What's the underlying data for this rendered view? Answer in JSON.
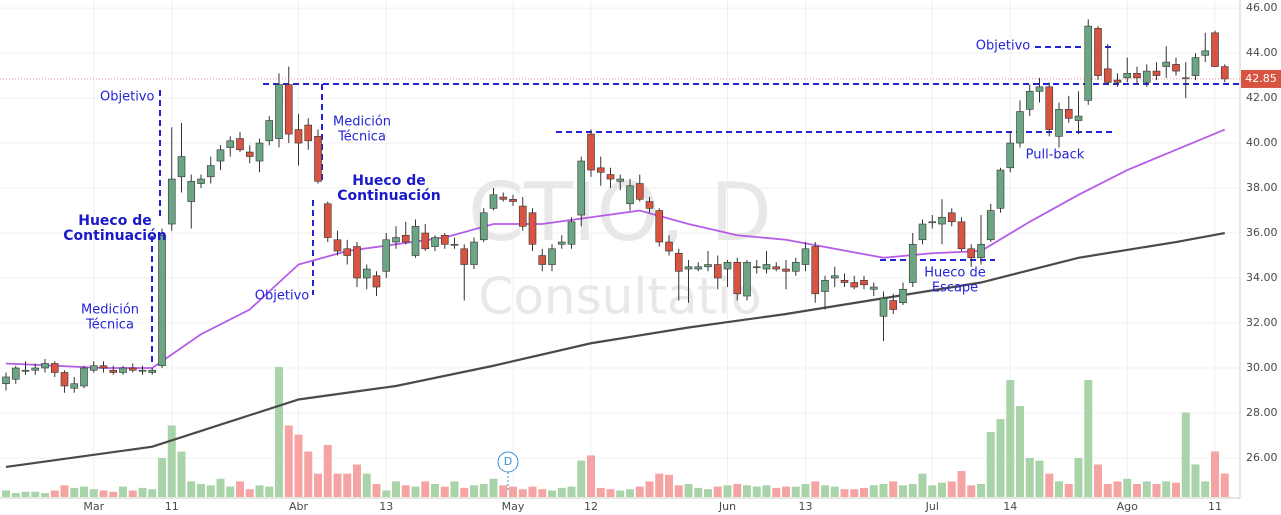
{
  "chart_data": {
    "type": "candlestick",
    "watermark": [
      "CTIO, D",
      "Consultatio"
    ],
    "marker": "D",
    "colors": {
      "up": "#6ba583",
      "down": "#d75442",
      "up_volume": "#a9d3a9",
      "down_volume": "#f5a3a3",
      "sma_fast": "#b65ce8",
      "sma_slow": "#4a4a4a"
    },
    "grid": true,
    "ylim": [
      24.22,
      46.36
    ],
    "yticks": [
      {
        "value": 26,
        "label": "26.00"
      },
      {
        "value": 28,
        "label": "28.00"
      },
      {
        "value": 30,
        "label": "30.00"
      },
      {
        "value": 32,
        "label": "32.00"
      },
      {
        "value": 34,
        "label": "34.00"
      },
      {
        "value": 36,
        "label": "36.00"
      },
      {
        "value": 38,
        "label": "38.00"
      },
      {
        "value": 40,
        "label": "40.00"
      },
      {
        "value": 42,
        "label": "42.00"
      },
      {
        "value": 44,
        "label": "44.00"
      },
      {
        "value": 46,
        "label": "46.00"
      }
    ],
    "last_price": {
      "value": 42.85,
      "label": "42.85"
    },
    "volume_lim": [
      0,
      100
    ],
    "categories": [
      null,
      null,
      null,
      null,
      null,
      null,
      null,
      null,
      null,
      "Mar",
      null,
      null,
      null,
      null,
      null,
      null,
      null,
      "11",
      null,
      null,
      null,
      null,
      null,
      null,
      null,
      null,
      null,
      null,
      null,
      null,
      "Abr",
      null,
      null,
      null,
      null,
      null,
      null,
      null,
      null,
      "13",
      null,
      null,
      null,
      null,
      null,
      null,
      null,
      null,
      null,
      null,
      null,
      null,
      "May",
      null,
      null,
      null,
      null,
      null,
      null,
      null,
      "12",
      null,
      null,
      null,
      null,
      null,
      null,
      null,
      null,
      null,
      null,
      null,
      null,
      null,
      "Jun",
      null,
      null,
      null,
      null,
      null,
      null,
      null,
      "13",
      null,
      null,
      null,
      null,
      null,
      null,
      null,
      null,
      null,
      null,
      null,
      null,
      "Jul",
      null,
      null,
      null,
      null,
      null,
      null,
      null,
      "14",
      null,
      null,
      null,
      null,
      null,
      null,
      null,
      null,
      null,
      null,
      null,
      "Ago",
      null,
      null,
      null,
      null,
      null,
      null,
      null,
      null,
      "11",
      null
    ],
    "candles": [
      [
        29.3,
        29.8,
        29.0,
        29.6
      ],
      [
        29.5,
        30.1,
        29.3,
        30.0
      ],
      [
        29.9,
        30.3,
        29.7,
        29.9
      ],
      [
        29.9,
        30.2,
        29.7,
        30.0
      ],
      [
        30.0,
        30.4,
        29.8,
        30.2
      ],
      [
        30.2,
        30.3,
        29.6,
        29.8
      ],
      [
        29.8,
        29.9,
        28.9,
        29.2
      ],
      [
        29.1,
        29.6,
        28.9,
        29.3
      ],
      [
        29.2,
        30.1,
        29.1,
        30.0
      ],
      [
        29.9,
        30.3,
        29.8,
        30.1
      ],
      [
        30.1,
        30.3,
        29.8,
        30.0
      ],
      [
        29.9,
        30.1,
        29.7,
        29.8
      ],
      [
        29.8,
        30.1,
        29.7,
        30.0
      ],
      [
        30.0,
        30.2,
        29.8,
        29.9
      ],
      [
        29.9,
        30.1,
        29.7,
        29.9
      ],
      [
        29.8,
        30.0,
        29.7,
        29.9
      ],
      [
        30.1,
        36.2,
        30.0,
        35.9
      ],
      [
        36.4,
        40.7,
        36.1,
        38.4
      ],
      [
        38.5,
        40.9,
        37.8,
        39.4
      ],
      [
        37.4,
        38.6,
        36.2,
        38.3
      ],
      [
        38.2,
        38.6,
        38.0,
        38.4
      ],
      [
        38.5,
        39.4,
        38.2,
        39.0
      ],
      [
        39.2,
        39.9,
        38.8,
        39.7
      ],
      [
        39.8,
        40.3,
        39.4,
        40.1
      ],
      [
        40.2,
        40.5,
        39.6,
        39.7
      ],
      [
        39.6,
        39.9,
        39.1,
        39.4
      ],
      [
        39.2,
        40.2,
        38.7,
        40.0
      ],
      [
        40.1,
        41.2,
        39.9,
        41.0
      ],
      [
        40.2,
        43.1,
        39.8,
        42.6
      ],
      [
        42.6,
        43.4,
        40.0,
        40.4
      ],
      [
        40.6,
        41.3,
        39.0,
        40.0
      ],
      [
        40.8,
        41.1,
        39.7,
        40.1
      ],
      [
        40.3,
        40.6,
        38.2,
        38.3
      ],
      [
        37.3,
        37.4,
        35.6,
        35.8
      ],
      [
        35.7,
        36.1,
        35.0,
        35.2
      ],
      [
        35.3,
        35.7,
        34.6,
        35.0
      ],
      [
        35.4,
        35.6,
        33.6,
        34.0
      ],
      [
        34.0,
        34.6,
        33.5,
        34.4
      ],
      [
        34.1,
        34.3,
        33.2,
        33.6
      ],
      [
        34.3,
        36.0,
        34.0,
        35.7
      ],
      [
        35.6,
        36.3,
        35.3,
        35.8
      ],
      [
        35.9,
        36.5,
        35.5,
        35.6
      ],
      [
        35.0,
        36.6,
        34.9,
        36.3
      ],
      [
        36.0,
        36.4,
        35.2,
        35.3
      ],
      [
        35.4,
        35.9,
        35.2,
        35.8
      ],
      [
        35.9,
        36.0,
        35.3,
        35.5
      ],
      [
        35.5,
        35.8,
        35.3,
        35.5
      ],
      [
        35.3,
        35.5,
        33.0,
        34.6
      ],
      [
        34.6,
        35.8,
        34.4,
        35.6
      ],
      [
        35.7,
        37.1,
        35.6,
        36.9
      ],
      [
        37.1,
        38.0,
        37.0,
        37.7
      ],
      [
        37.6,
        37.8,
        37.4,
        37.5
      ],
      [
        37.5,
        37.7,
        37.2,
        37.4
      ],
      [
        37.2,
        37.6,
        36.1,
        36.3
      ],
      [
        36.9,
        37.1,
        35.2,
        35.5
      ],
      [
        35.0,
        35.3,
        34.3,
        34.6
      ],
      [
        34.6,
        35.5,
        34.3,
        35.3
      ],
      [
        35.5,
        35.9,
        35.3,
        35.6
      ],
      [
        35.5,
        36.7,
        35.3,
        36.5
      ],
      [
        36.8,
        39.4,
        36.3,
        39.2
      ],
      [
        40.4,
        40.6,
        38.5,
        38.8
      ],
      [
        38.9,
        39.4,
        38.1,
        38.7
      ],
      [
        38.6,
        38.9,
        38.0,
        38.4
      ],
      [
        38.3,
        38.6,
        37.9,
        38.4
      ],
      [
        37.3,
        38.4,
        37.0,
        38.1
      ],
      [
        38.2,
        38.6,
        37.4,
        37.5
      ],
      [
        37.4,
        37.6,
        36.9,
        37.1
      ],
      [
        37.0,
        37.1,
        35.4,
        35.6
      ],
      [
        35.6,
        35.9,
        35.0,
        35.2
      ],
      [
        35.1,
        35.3,
        33.0,
        34.3
      ],
      [
        34.4,
        34.8,
        32.9,
        34.5
      ],
      [
        34.4,
        34.7,
        34.3,
        34.5
      ],
      [
        34.5,
        35.2,
        34.3,
        34.6
      ],
      [
        34.6,
        35.0,
        33.5,
        34.0
      ],
      [
        34.4,
        34.8,
        33.6,
        34.7
      ],
      [
        34.7,
        34.9,
        33.0,
        33.3
      ],
      [
        33.2,
        34.8,
        33.0,
        34.7
      ],
      [
        34.5,
        34.8,
        34.2,
        34.5
      ],
      [
        34.4,
        35.2,
        34.2,
        34.6
      ],
      [
        34.5,
        34.7,
        34.3,
        34.4
      ],
      [
        34.4,
        34.8,
        33.5,
        34.3
      ],
      [
        34.3,
        34.9,
        34.1,
        34.7
      ],
      [
        34.6,
        35.6,
        34.3,
        35.3
      ],
      [
        35.4,
        35.6,
        32.9,
        33.3
      ],
      [
        33.4,
        34.1,
        32.6,
        33.9
      ],
      [
        34.0,
        34.5,
        33.6,
        34.1
      ],
      [
        33.9,
        34.2,
        33.6,
        33.8
      ],
      [
        33.8,
        34.1,
        33.5,
        33.6
      ],
      [
        33.9,
        34.1,
        33.5,
        33.7
      ],
      [
        33.5,
        33.8,
        33.2,
        33.6
      ],
      [
        32.3,
        33.4,
        31.2,
        33.1
      ],
      [
        33.0,
        33.3,
        32.4,
        32.6
      ],
      [
        32.9,
        33.8,
        32.8,
        33.5
      ],
      [
        33.8,
        36.0,
        33.6,
        35.5
      ],
      [
        35.7,
        36.6,
        35.5,
        36.4
      ],
      [
        36.5,
        36.8,
        36.2,
        36.5
      ],
      [
        36.4,
        37.5,
        35.5,
        36.7
      ],
      [
        36.9,
        37.1,
        36.3,
        36.5
      ],
      [
        36.5,
        36.7,
        35.2,
        35.3
      ],
      [
        35.3,
        35.5,
        34.5,
        34.9
      ],
      [
        34.9,
        36.8,
        34.6,
        35.5
      ],
      [
        35.7,
        37.3,
        35.6,
        37.0
      ],
      [
        37.1,
        38.9,
        36.9,
        38.8
      ],
      [
        38.9,
        40.5,
        38.7,
        40.0
      ],
      [
        40.0,
        41.9,
        39.8,
        41.4
      ],
      [
        41.5,
        42.6,
        41.2,
        42.3
      ],
      [
        42.3,
        42.9,
        41.8,
        42.5
      ],
      [
        42.5,
        42.7,
        40.3,
        40.6
      ],
      [
        40.3,
        41.8,
        39.8,
        41.5
      ],
      [
        41.5,
        42.1,
        40.9,
        41.1
      ],
      [
        41.0,
        42.3,
        40.4,
        41.2
      ],
      [
        41.9,
        45.5,
        41.7,
        45.2
      ],
      [
        45.1,
        45.2,
        42.8,
        43.0
      ],
      [
        43.3,
        44.4,
        42.6,
        42.7
      ],
      [
        42.8,
        43.1,
        42.5,
        42.7
      ],
      [
        42.9,
        43.8,
        42.7,
        43.1
      ],
      [
        43.1,
        43.4,
        42.6,
        42.9
      ],
      [
        42.7,
        43.5,
        42.5,
        43.2
      ],
      [
        43.2,
        43.6,
        42.8,
        43.0
      ],
      [
        43.4,
        44.3,
        42.9,
        43.6
      ],
      [
        43.5,
        43.8,
        43.0,
        43.2
      ],
      [
        42.9,
        43.6,
        42.0,
        42.9
      ],
      [
        43.0,
        44.0,
        42.8,
        43.8
      ],
      [
        43.9,
        44.9,
        43.6,
        44.1
      ],
      [
        44.9,
        45.0,
        43.4,
        43.4
      ],
      [
        43.4,
        43.5,
        42.7,
        42.85
      ]
    ],
    "volume": [
      5,
      3,
      4,
      4,
      3,
      5,
      9,
      7,
      8,
      6,
      5,
      4,
      8,
      5,
      7,
      6,
      30,
      55,
      35,
      12,
      10,
      9,
      14,
      8,
      12,
      6,
      9,
      8,
      100,
      55,
      48,
      35,
      18,
      40,
      18,
      18,
      25,
      18,
      10,
      5,
      12,
      9,
      8,
      12,
      10,
      8,
      12,
      7,
      9,
      10,
      14,
      9,
      8,
      6,
      8,
      6,
      5,
      7,
      8,
      28,
      32,
      7,
      6,
      5,
      6,
      8,
      12,
      18,
      17,
      9,
      10,
      7,
      6,
      8,
      9,
      10,
      9,
      8,
      9,
      7,
      8,
      8,
      10,
      12,
      9,
      8,
      6,
      6,
      7,
      9,
      10,
      12,
      9,
      10,
      18,
      9,
      11,
      12,
      20,
      9,
      10,
      50,
      60,
      90,
      70,
      30,
      28,
      18,
      12,
      10,
      30,
      90,
      25,
      10,
      12,
      14,
      10,
      12,
      10,
      12,
      11,
      65,
      25,
      12,
      35,
      18
    ],
    "series": [
      {
        "name": "SMA 50",
        "color": "#b65ce8",
        "x": [
          0,
          5,
          10,
          15,
          20,
          25,
          30,
          35,
          40,
          45,
          50,
          55,
          60,
          65,
          70,
          75,
          80,
          85,
          90,
          95,
          100,
          105,
          110,
          115,
          120,
          125
        ],
        "values": [
          30.2,
          30.1,
          30.0,
          30.0,
          31.5,
          32.6,
          34.6,
          35.2,
          35.5,
          35.8,
          36.4,
          36.4,
          36.7,
          37.0,
          36.4,
          35.9,
          35.7,
          35.3,
          34.9,
          35.1,
          35.2,
          36.5,
          37.7,
          38.8,
          39.7,
          40.6
        ]
      },
      {
        "name": "SMA 200",
        "color": "#4a4a4a",
        "x": [
          0,
          15,
          20,
          30,
          40,
          50,
          60,
          70,
          80,
          90,
          100,
          110,
          120,
          125
        ],
        "values": [
          25.6,
          26.5,
          27.2,
          28.6,
          29.2,
          30.1,
          31.1,
          31.8,
          32.4,
          33.1,
          33.8,
          34.9,
          35.6,
          36.0
        ]
      }
    ],
    "annotations": [
      {
        "lines": [
          "Objetivo"
        ],
        "bold": false
      },
      {
        "lines": [
          "Hueco de",
          "Continuación"
        ],
        "bold": true
      },
      {
        "lines": [
          "Medición",
          "Técnica"
        ],
        "bold": false
      },
      {
        "lines": [
          "Medición",
          "Técnica"
        ],
        "bold": false
      },
      {
        "lines": [
          "Hueco de",
          "Continuación"
        ],
        "bold": true
      },
      {
        "lines": [
          "Objetivo"
        ],
        "bold": false
      },
      {
        "lines": [
          "Pull-back"
        ],
        "bold": false
      },
      {
        "lines": [
          "Hueco de",
          "Escape"
        ],
        "bold": false
      },
      {
        "lines": [
          "Objetivo"
        ],
        "bold": false
      }
    ]
  }
}
